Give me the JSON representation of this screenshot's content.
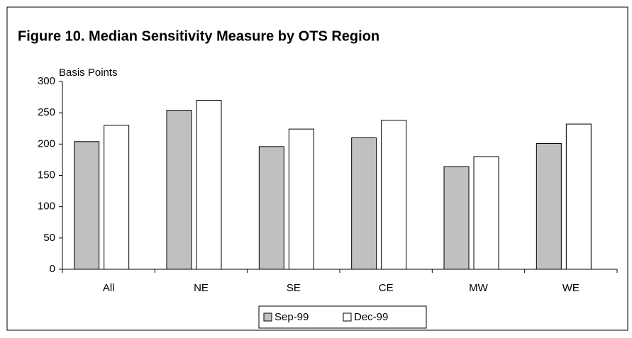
{
  "chart_data": {
    "type": "bar",
    "title": "Figure 10.  Median Sensitivity Measure by OTS Region",
    "y_label": "Basis Points",
    "categories": [
      "All",
      "NE",
      "SE",
      "CE",
      "MW",
      "WE"
    ],
    "series": [
      {
        "name": "Sep-99",
        "color": "#c0c0c0",
        "values": [
          204,
          254,
          196,
          210,
          164,
          201
        ]
      },
      {
        "name": "Dec-99",
        "color": "#ffffff",
        "values": [
          230,
          270,
          224,
          238,
          180,
          232
        ]
      }
    ],
    "ylim": [
      0,
      300
    ],
    "yticks": [
      0,
      50,
      100,
      150,
      200,
      250,
      300
    ],
    "legend": "bottom"
  }
}
